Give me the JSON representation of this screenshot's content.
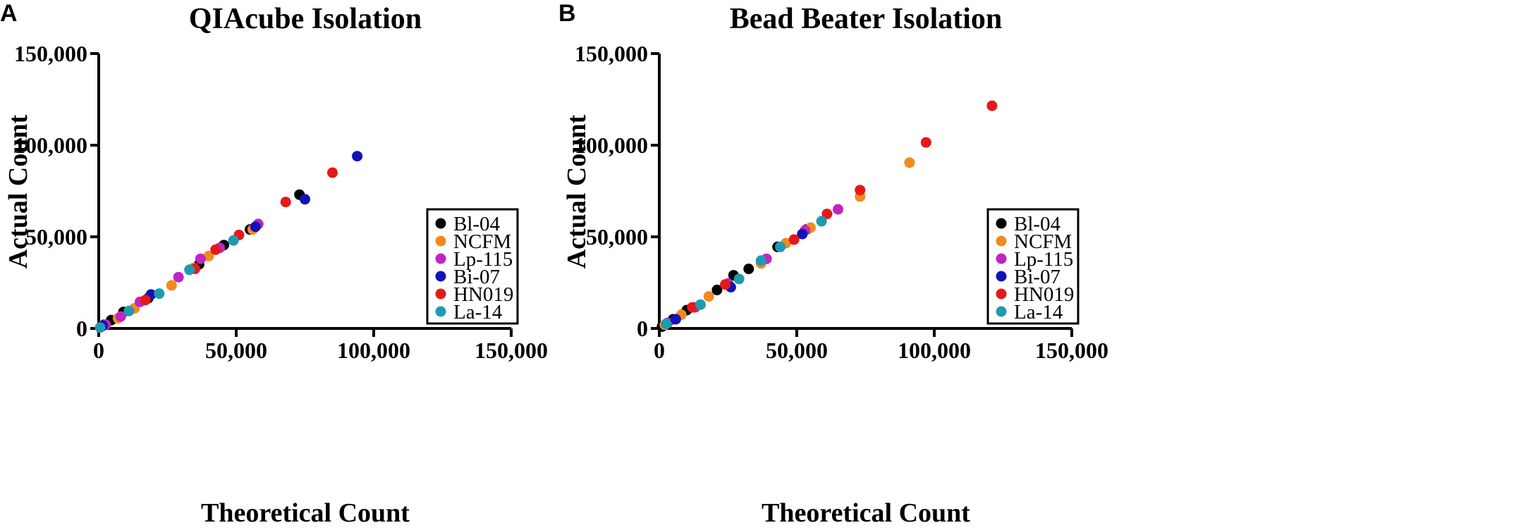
{
  "colors": {
    "Bl-04": "#000000",
    "NCFM": "#F28A1E",
    "Lp-115": "#C224C2",
    "Bi-07": "#1212B8",
    "HN019": "#E61919",
    "La-14": "#1E9BB0"
  },
  "chart_data": [
    {
      "panel": "A",
      "type": "scatter",
      "title": "QIAcube Isolation",
      "xlabel": "Theoretical Count",
      "ylabel": "Actual Count",
      "xlim": [
        0,
        150000
      ],
      "ylim": [
        0,
        150000
      ],
      "xticks": [
        0,
        50000,
        100000,
        150000
      ],
      "yticks": [
        0,
        50000,
        100000,
        150000
      ],
      "xtick_labels": [
        "0",
        "50,000",
        "100,000",
        "150,000"
      ],
      "ytick_labels": [
        "0",
        "50,000",
        "100,000",
        "150,000"
      ],
      "legend": [
        "Bl-04",
        "NCFM",
        "Lp-115",
        "Bi-07",
        "HN019",
        "La-14"
      ],
      "legend_position": "bottom-right",
      "series": [
        {
          "name": "Bl-04",
          "points": [
            [
              2000,
              2000
            ],
            [
              4500,
              4500
            ],
            [
              9000,
              9000
            ],
            [
              18000,
              16500
            ],
            [
              36500,
              35000
            ],
            [
              45500,
              45500
            ],
            [
              55000,
              54000
            ],
            [
              73000,
              73000
            ]
          ]
        },
        {
          "name": "NCFM",
          "points": [
            [
              1000,
              1000
            ],
            [
              7000,
              5500
            ],
            [
              13000,
              11000
            ],
            [
              26500,
              23500
            ],
            [
              34500,
              33000
            ],
            [
              40000,
              39500
            ],
            [
              56000,
              54000
            ]
          ]
        },
        {
          "name": "Lp-115",
          "points": [
            [
              2500,
              2000
            ],
            [
              8000,
              6500
            ],
            [
              15000,
              14500
            ],
            [
              29000,
              28000
            ],
            [
              37000,
              38000
            ],
            [
              44000,
              44000
            ],
            [
              58000,
              57000
            ]
          ]
        },
        {
          "name": "Bi-07",
          "points": [
            [
              1500,
              1500
            ],
            [
              19000,
              18500
            ],
            [
              57000,
              55500
            ],
            [
              75000,
              70500
            ],
            [
              94000,
              94000
            ]
          ]
        },
        {
          "name": "HN019",
          "points": [
            [
              17000,
              15500
            ],
            [
              35000,
              32500
            ],
            [
              42500,
              43000
            ],
            [
              51000,
              51000
            ],
            [
              68000,
              69000
            ],
            [
              85000,
              85000
            ]
          ]
        },
        {
          "name": "La-14",
          "points": [
            [
              500,
              500
            ],
            [
              11000,
              9500
            ],
            [
              22000,
              19000
            ],
            [
              33000,
              32000
            ],
            [
              49000,
              48000
            ]
          ]
        }
      ]
    },
    {
      "panel": "B",
      "type": "scatter",
      "title": "Bead Beater Isolation",
      "xlabel": "Theoretical Count",
      "ylabel": "Actual Count",
      "xlim": [
        0,
        150000
      ],
      "ylim": [
        0,
        150000
      ],
      "xticks": [
        0,
        50000,
        100000,
        150000
      ],
      "yticks": [
        0,
        50000,
        100000,
        150000
      ],
      "xtick_labels": [
        "0",
        "50,000",
        "100,000",
        "150,000"
      ],
      "ytick_labels": [
        "0",
        "50,000",
        "100,000",
        "150,000"
      ],
      "legend": [
        "Bl-04",
        "NCFM",
        "Lp-115",
        "Bi-07",
        "HN019",
        "La-14"
      ],
      "legend_position": "bottom-right",
      "series": [
        {
          "name": "Bl-04",
          "points": [
            [
              1000,
              1000
            ],
            [
              5000,
              5000
            ],
            [
              10000,
              10000
            ],
            [
              21000,
              21000
            ],
            [
              27000,
              29000
            ],
            [
              32500,
              32500
            ],
            [
              43000,
              44500
            ],
            [
              53500,
              54000
            ]
          ]
        },
        {
          "name": "NCFM",
          "points": [
            [
              2000,
              2000
            ],
            [
              8000,
              7500
            ],
            [
              18000,
              17500
            ],
            [
              37000,
              35500
            ],
            [
              46000,
              46500
            ],
            [
              55000,
              55000
            ],
            [
              73000,
              72000
            ],
            [
              91000,
              90500
            ]
          ]
        },
        {
          "name": "Lp-115",
          "points": [
            [
              3000,
              3000
            ],
            [
              13000,
              11500
            ],
            [
              25000,
              24500
            ],
            [
              39000,
              38000
            ],
            [
              53000,
              53500
            ],
            [
              65000,
              65000
            ]
          ]
        },
        {
          "name": "Bi-07",
          "points": [
            [
              6000,
              5000
            ],
            [
              26000,
              22500
            ],
            [
              52000,
              51500
            ]
          ]
        },
        {
          "name": "HN019",
          "points": [
            [
              12000,
              11500
            ],
            [
              24000,
              24000
            ],
            [
              49000,
              48500
            ],
            [
              61000,
              62500
            ],
            [
              73000,
              75500
            ],
            [
              97000,
              101500
            ],
            [
              121000,
              121500
            ]
          ]
        },
        {
          "name": "La-14",
          "points": [
            [
              2500,
              2500
            ],
            [
              15000,
              13000
            ],
            [
              29000,
              27000
            ],
            [
              37000,
              37000
            ],
            [
              44000,
              44500
            ],
            [
              59000,
              58500
            ]
          ]
        }
      ]
    }
  ]
}
